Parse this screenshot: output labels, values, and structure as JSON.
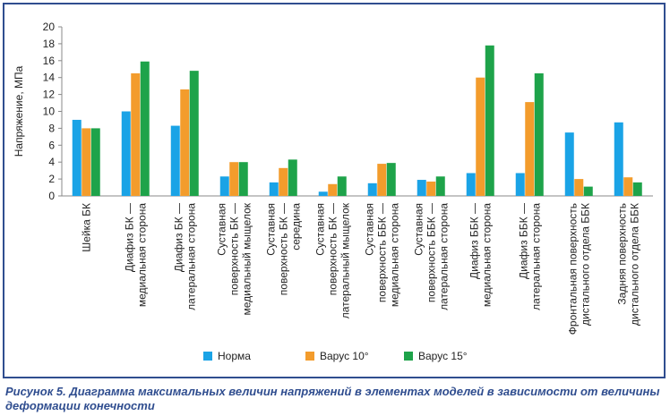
{
  "caption": "Рисунок 5. Диаграмма максимальных величин напряжений в элементах моделей в зависимости от величины деформации конечности",
  "colors": {
    "frame": "#2f4d8f",
    "caption": "#2f4d8f"
  },
  "chart_data": {
    "type": "bar",
    "title": "",
    "xlabel": "",
    "ylabel": "Напряжение, МПа",
    "ylim": [
      0,
      20
    ],
    "yticks": [
      0,
      2,
      4,
      6,
      8,
      10,
      12,
      14,
      16,
      18,
      20
    ],
    "grid": false,
    "legend_position": "bottom",
    "categories": [
      [
        "Шейка БК"
      ],
      [
        "Диафиз БК —",
        "медиальная сторона"
      ],
      [
        "Диафиз БК —",
        "латеральная сторона"
      ],
      [
        "Суставная",
        "поверхность БК —",
        "медиальный мыщелок"
      ],
      [
        "Суставная",
        "поверхность БК —",
        "середина"
      ],
      [
        "Суставная",
        "поверхность БК —",
        "латеральный мыщелок"
      ],
      [
        "Суставная",
        "поверхность ББК —",
        "медиальная сторона"
      ],
      [
        "Суставная",
        "поверхность ББК —",
        "латеральная сторона"
      ],
      [
        "Диафиз ББК —",
        "медиальная сторона"
      ],
      [
        "Диафиз ББК —",
        "латеральная сторона"
      ],
      [
        "Фронтальная поверхность",
        "дистального отдела ББК"
      ],
      [
        "Задняя поверхность",
        "дистального отдела ББК"
      ]
    ],
    "series": [
      {
        "name": "Норма",
        "color": "#1aa3e6",
        "values": [
          9.0,
          10.0,
          8.3,
          2.3,
          1.6,
          0.5,
          1.5,
          1.9,
          2.7,
          2.7,
          7.5,
          8.7
        ]
      },
      {
        "name": "Варус 10°",
        "color": "#f39c2c",
        "values": [
          8.0,
          14.5,
          12.6,
          4.0,
          3.3,
          1.4,
          3.8,
          1.7,
          14.0,
          11.1,
          2.0,
          2.2
        ]
      },
      {
        "name": "Варус 15°",
        "color": "#1ea34a",
        "values": [
          8.0,
          15.9,
          14.8,
          4.0,
          4.3,
          2.3,
          3.9,
          2.3,
          17.8,
          14.5,
          1.1,
          1.6
        ]
      }
    ]
  }
}
